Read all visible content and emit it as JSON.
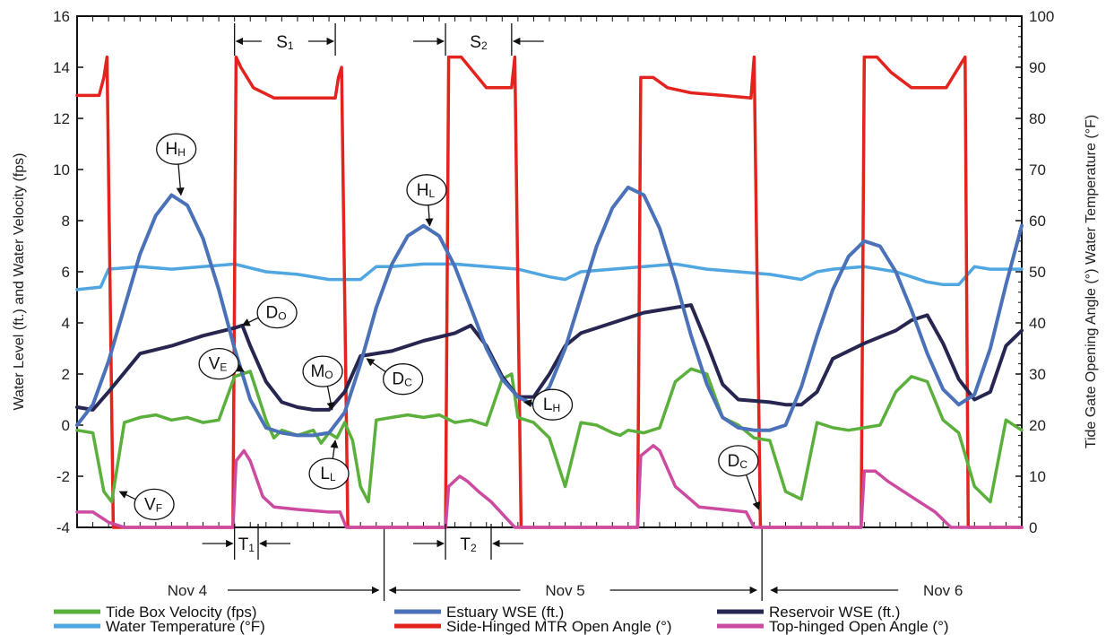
{
  "chart_data": {
    "type": "line",
    "ylabel": "Water Level (ft.) and Water Velocity (fps)",
    "y2label": "Tide Gate Opening Angle (°) Water Temperature (°F)",
    "ylim": [
      -4,
      16
    ],
    "y2lim": [
      0,
      100
    ],
    "y_ticks": [
      "16",
      "14",
      "12",
      "10",
      "8",
      "6",
      "4",
      "2",
      "0",
      "-2",
      "-4"
    ],
    "y2_ticks": [
      "100",
      "90",
      "80",
      "70",
      "60",
      "50",
      "40",
      "30",
      "20",
      "10",
      "0"
    ],
    "xlim": [
      0,
      60
    ],
    "x_unit": "hours from start of record",
    "day_labels": [
      {
        "label": "Nov 4",
        "x": 7
      },
      {
        "label": "Nov 5",
        "x": 31
      },
      {
        "label": "Nov 6",
        "x": 55
      }
    ],
    "day_boundaries": [
      19.5,
      43.5
    ],
    "series": [
      {
        "name": "Tide Box Velocity (fps)",
        "axis": "left",
        "color": "#5bb03b",
        "x": [
          0,
          1,
          1.7,
          2.2,
          3,
          4,
          5,
          6,
          7,
          8,
          9,
          10,
          11,
          12,
          12.5,
          13,
          14,
          15,
          15.5,
          16,
          16.5,
          17,
          17.5,
          18,
          18.5,
          19,
          20,
          21,
          22,
          23,
          24,
          25,
          26,
          27,
          27.6,
          28,
          29,
          30,
          31,
          32,
          33,
          34,
          34.5,
          35,
          36,
          37,
          38,
          39,
          40,
          41,
          42,
          43,
          44,
          45,
          46,
          47,
          48,
          49,
          50,
          51,
          52,
          53,
          54,
          55,
          56,
          57,
          58,
          59,
          60
        ],
        "y": [
          -0.2,
          -0.3,
          -2.6,
          -3.0,
          0.1,
          0.3,
          0.4,
          0.2,
          0.3,
          0.1,
          0.2,
          1.9,
          2.1,
          0.2,
          -0.5,
          -0.2,
          -0.4,
          -0.2,
          -0.7,
          -0.3,
          -0.5,
          0.1,
          -0.6,
          -2.4,
          -3.0,
          0.2,
          0.3,
          0.4,
          0.3,
          0.4,
          0.1,
          0.2,
          0.0,
          1.8,
          2.0,
          0.3,
          0.1,
          -0.5,
          -2.4,
          0.1,
          0.0,
          -0.3,
          -0.4,
          -0.2,
          -0.3,
          -0.1,
          1.7,
          2.2,
          2.0,
          0.3,
          0.0,
          -0.5,
          -0.6,
          -2.6,
          -2.9,
          0.1,
          -0.1,
          -0.2,
          -0.1,
          0.0,
          1.3,
          1.9,
          1.7,
          0.2,
          -0.3,
          -2.4,
          -3.0,
          0.2,
          -0.2
        ]
      },
      {
        "name": "Estuary WSE (ft.)",
        "axis": "left",
        "color": "#4b72b8",
        "x": [
          0,
          1,
          2,
          3,
          4,
          5,
          6,
          7,
          8,
          9,
          10,
          11,
          12,
          13,
          14,
          15,
          16,
          17,
          18,
          19,
          20,
          21,
          22,
          23,
          24,
          25,
          26,
          27,
          28,
          29,
          30,
          31,
          32,
          33,
          34,
          35,
          36,
          37,
          38,
          39,
          40,
          41,
          42,
          43,
          44,
          45,
          46,
          47,
          48,
          49,
          50,
          51,
          52,
          53,
          54,
          55,
          56,
          57,
          58,
          59,
          60
        ],
        "y": [
          0.0,
          0.8,
          2.5,
          4.6,
          6.7,
          8.2,
          9.0,
          8.6,
          7.3,
          5.3,
          3.0,
          1.0,
          -0.1,
          -0.3,
          -0.4,
          -0.4,
          -0.3,
          0.5,
          2.4,
          4.6,
          6.3,
          7.4,
          7.8,
          7.4,
          6.2,
          4.6,
          3.0,
          1.8,
          1.1,
          0.8,
          1.5,
          3.0,
          5.0,
          7.0,
          8.5,
          9.3,
          9.0,
          7.7,
          5.7,
          3.5,
          1.6,
          0.3,
          -0.1,
          -0.2,
          -0.2,
          0.0,
          1.5,
          3.5,
          5.3,
          6.6,
          7.2,
          7.0,
          6.0,
          4.5,
          2.8,
          1.4,
          0.8,
          1.2,
          3.0,
          5.5,
          7.8
        ]
      },
      {
        "name": "Reservoir WSE (ft.)",
        "axis": "left",
        "color": "#262650",
        "x": [
          0,
          1,
          2,
          4,
          6,
          8,
          10,
          10.5,
          11,
          12,
          13,
          14,
          15,
          16,
          17,
          18,
          20,
          22,
          24,
          25,
          26,
          27,
          28,
          29,
          30,
          31,
          32,
          34,
          36,
          38,
          39,
          40,
          41,
          42,
          44,
          45,
          46,
          47,
          48,
          50,
          52,
          53,
          54,
          55,
          56,
          57,
          58,
          59,
          60
        ],
        "y": [
          0.7,
          0.6,
          1.3,
          2.8,
          3.1,
          3.5,
          3.8,
          3.9,
          3.1,
          1.7,
          0.9,
          0.7,
          0.6,
          0.6,
          1.3,
          2.7,
          2.9,
          3.3,
          3.6,
          3.9,
          3.1,
          1.9,
          1.1,
          1.1,
          2.0,
          3.1,
          3.6,
          4.0,
          4.4,
          4.6,
          4.7,
          3.2,
          1.6,
          1.0,
          0.9,
          0.8,
          0.8,
          1.3,
          2.6,
          3.2,
          3.7,
          4.1,
          4.3,
          3.2,
          1.8,
          1.0,
          1.3,
          3.1,
          3.7
        ]
      },
      {
        "name": "Water Temperature (°F)",
        "axis": "right",
        "color": "#4fa6e0",
        "x": [
          0,
          1.5,
          2,
          4,
          6,
          8,
          10,
          12,
          14,
          16,
          17,
          18,
          19,
          20,
          22,
          24,
          26,
          28,
          30,
          31,
          32,
          34,
          36,
          38,
          40,
          42,
          44,
          46,
          47,
          48,
          50,
          52,
          54,
          55,
          56,
          57,
          58,
          60
        ],
        "y": [
          46.5,
          47,
          50.5,
          51,
          50.5,
          51,
          51.5,
          50,
          49.5,
          48.5,
          48.5,
          48.5,
          51,
          51,
          51.5,
          51.5,
          51,
          50.5,
          49,
          48.5,
          50,
          50.5,
          51,
          51.5,
          50.5,
          50,
          49.5,
          48.5,
          50,
          50.5,
          51,
          50,
          48,
          47.5,
          47.5,
          51,
          50.5,
          50.5
        ]
      },
      {
        "name": "Side-Hinged MTR Open Angle (°)",
        "axis": "right",
        "color": "#e3231e",
        "x": [
          0,
          1.4,
          1.7,
          1.9,
          2.3,
          9.9,
          10.1,
          10.4,
          11.2,
          12.5,
          15,
          16.4,
          16.6,
          16.8,
          17.2,
          23.4,
          23.6,
          24.4,
          25.2,
          26,
          27.6,
          27.8,
          28.2,
          35.6,
          35.8,
          36.6,
          37.5,
          39,
          41,
          42.8,
          43.0,
          43.4,
          49.8,
          50.0,
          50.8,
          51.7,
          53,
          55.2,
          56.4,
          56.6,
          56.9,
          60
        ],
        "y": [
          84.5,
          84.5,
          88,
          92,
          0,
          0,
          92,
          90,
          86,
          84,
          84,
          84,
          88,
          90,
          0,
          0,
          92,
          92,
          89,
          86,
          86,
          92,
          0,
          0,
          88,
          88,
          86,
          85,
          84.5,
          84,
          92,
          0,
          0,
          92,
          92,
          89,
          86,
          86,
          92,
          0,
          0,
          0
        ]
      },
      {
        "name": "Top-hinged Open Angle (°)",
        "axis": "right",
        "color": "#cc4aa0",
        "x": [
          0,
          1,
          2,
          3,
          9.9,
          10.1,
          10.6,
          11,
          11.8,
          12.5,
          14,
          16,
          16.7,
          17.1,
          23.4,
          23.6,
          24.3,
          24.8,
          25.5,
          26.3,
          27.2,
          27.8,
          35.6,
          35.8,
          36.6,
          37,
          38,
          39.5,
          41,
          42.5,
          43,
          49.8,
          50,
          50.7,
          51.5,
          53,
          54.5,
          55.5,
          60
        ],
        "y": [
          3,
          3,
          1,
          0,
          0,
          13,
          15,
          13,
          6,
          4,
          3.5,
          3,
          3,
          0,
          0,
          8,
          10,
          9,
          7,
          5,
          2,
          0,
          0,
          14,
          16,
          15,
          8,
          4,
          3.5,
          3,
          0,
          0,
          11,
          11,
          9,
          6,
          3,
          0,
          0
        ]
      }
    ],
    "annotations": [
      {
        "main": "H",
        "sub": "H",
        "x": 6.3,
        "y": 10.8,
        "tx": 6.6,
        "ty": 9.0
      },
      {
        "main": "H",
        "sub": "L",
        "x": 22.2,
        "y": 9.2,
        "tx": 22.4,
        "ty": 7.8
      },
      {
        "main": "D",
        "sub": "O",
        "x": 12.7,
        "y": 4.4,
        "tx": 10.5,
        "ty": 3.9
      },
      {
        "main": "V",
        "sub": "E",
        "x": 9.0,
        "y": 2.4,
        "tx": 10.6,
        "ty": 2.1
      },
      {
        "main": "M",
        "sub": "O",
        "x": 15.6,
        "y": 2.1,
        "tx": 16.2,
        "ty": 0.6
      },
      {
        "main": "D",
        "sub": "C",
        "x": 20.7,
        "y": 1.8,
        "tx": 18.4,
        "ty": 2.6
      },
      {
        "main": "L",
        "sub": "H",
        "x": 30.2,
        "y": 0.8,
        "tx": 28.4,
        "ty": 0.9
      },
      {
        "main": "L",
        "sub": "L",
        "x": 16.0,
        "y": -1.9,
        "tx": 16.4,
        "ty": -0.6
      },
      {
        "main": "V",
        "sub": "F",
        "x": 4.9,
        "y": -3.1,
        "tx": 2.7,
        "ty": -2.6
      },
      {
        "main": "D",
        "sub": "C",
        "x": 42.0,
        "y": -1.4,
        "tx": 43.3,
        "ty": -3.3
      }
    ],
    "intervals": [
      {
        "main": "S",
        "sub": "1",
        "from": 10.0,
        "to": 16.4,
        "where": "top"
      },
      {
        "main": "S",
        "sub": "2",
        "from": 23.4,
        "to": 27.6,
        "where": "top"
      },
      {
        "main": "T",
        "sub": "1",
        "from": 10.0,
        "to": 11.5,
        "where": "bottom"
      },
      {
        "main": "T",
        "sub": "2",
        "from": 23.4,
        "to": 26.3,
        "where": "bottom"
      }
    ],
    "grid": false,
    "legend_position": "bottom"
  }
}
